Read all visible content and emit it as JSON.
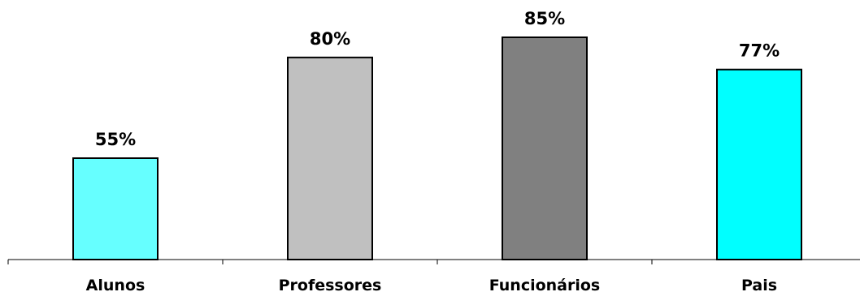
{
  "chart_data": {
    "type": "bar",
    "categories": [
      "Alunos",
      "Professores",
      "Funcionários",
      "Pais"
    ],
    "values": [
      55,
      80,
      85,
      77
    ],
    "value_labels": [
      "55%",
      "80%",
      "85%",
      "77%"
    ],
    "bar_colors": [
      "#66ffff",
      "#c0c0c0",
      "#808080",
      "#00ffff"
    ],
    "ylim": [
      0,
      100
    ],
    "grid": false,
    "legend": "none",
    "title": "",
    "xlabel": "",
    "ylabel": ""
  }
}
